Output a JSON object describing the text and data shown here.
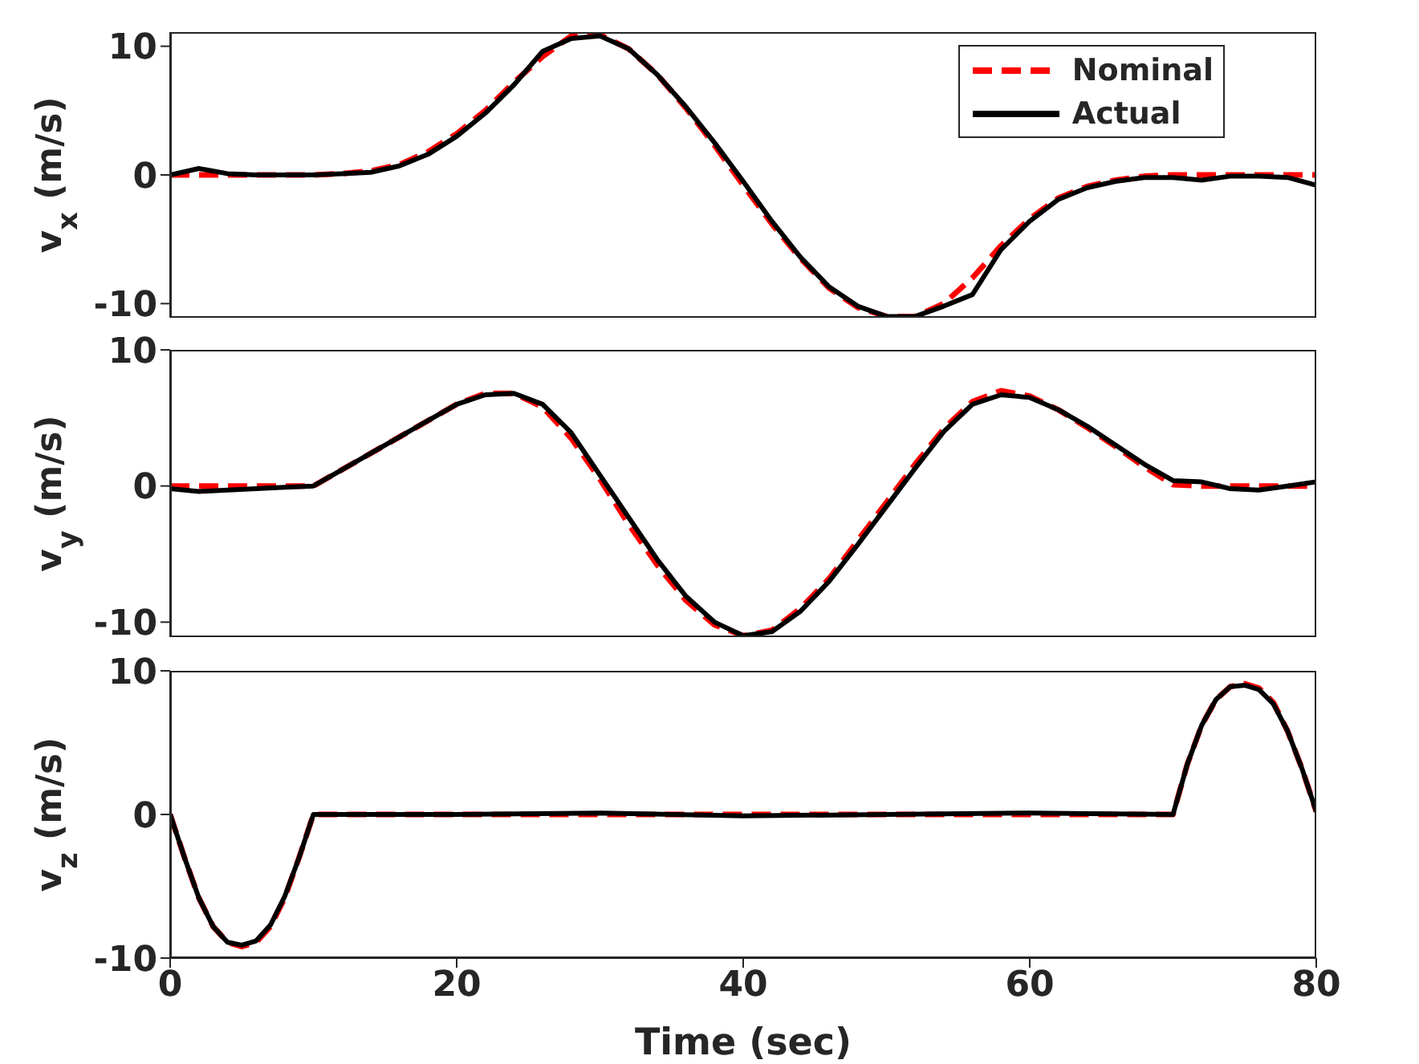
{
  "chart_data": [
    {
      "type": "line",
      "ylabel": "v$_{x}$ (m/s)",
      "xlim": [
        0,
        80
      ],
      "ylim": [
        -11.1,
        11.1
      ],
      "yticks": [
        -10,
        0,
        10
      ],
      "tick_labels": "y",
      "legend": "top right",
      "grid": false,
      "x": [
        0,
        2,
        4,
        6,
        8,
        10,
        12,
        14,
        16,
        18,
        20,
        22,
        24,
        26,
        28,
        30,
        32,
        34,
        36,
        38,
        40,
        42,
        44,
        46,
        48,
        50,
        52,
        54,
        56,
        58,
        60,
        62,
        64,
        66,
        68,
        70,
        72,
        74,
        76,
        78,
        80
      ],
      "series": [
        {
          "name": "Nominal",
          "color": "#ff0000",
          "line_style": "dashed",
          "values": [
            0,
            0,
            0,
            0,
            0,
            0,
            0.1,
            0.3,
            0.8,
            1.8,
            3.2,
            5,
            7.2,
            9.2,
            10.8,
            10.9,
            9.8,
            7.8,
            5.2,
            2.3,
            -0.8,
            -3.8,
            -6.5,
            -8.8,
            -10.3,
            -11,
            -11,
            -10,
            -8,
            -5.5,
            -3.4,
            -1.8,
            -0.9,
            -0.4,
            -0.1,
            0,
            0,
            0,
            0,
            0,
            0
          ]
        },
        {
          "name": "Actual",
          "color": "#000000",
          "line_style": "solid",
          "values": [
            0,
            0.5,
            0.1,
            0,
            0,
            0,
            0.1,
            0.2,
            0.7,
            1.6,
            3,
            4.8,
            7,
            9.6,
            10.6,
            10.8,
            9.8,
            7.8,
            5.3,
            2.5,
            -0.5,
            -3.6,
            -6.4,
            -8.7,
            -10.2,
            -11,
            -11,
            -10.2,
            -9.3,
            -5.8,
            -3.6,
            -1.9,
            -1,
            -0.5,
            -0.2,
            -0.2,
            -0.4,
            -0.1,
            -0.1,
            -0.2,
            -0.8
          ]
        }
      ]
    },
    {
      "type": "line",
      "ylabel": "v$_{y}$ (m/s)",
      "xlim": [
        0,
        80
      ],
      "ylim": [
        -11.1,
        10
      ],
      "yticks": [
        -10,
        0,
        10
      ],
      "tick_labels": "y",
      "grid": false,
      "x": [
        0,
        2,
        4,
        6,
        8,
        10,
        12,
        14,
        16,
        18,
        20,
        22,
        24,
        26,
        28,
        30,
        32,
        34,
        36,
        38,
        40,
        42,
        44,
        46,
        48,
        50,
        52,
        54,
        56,
        58,
        60,
        62,
        64,
        66,
        68,
        70,
        72,
        74,
        76,
        78,
        80
      ],
      "series": [
        {
          "color": "#ff0000",
          "line_style": "dashed",
          "values": [
            0,
            0,
            0,
            0,
            0,
            0,
            1.2,
            2.4,
            3.6,
            4.8,
            6,
            6.8,
            6.8,
            5.8,
            3.5,
            0.5,
            -2.8,
            -5.8,
            -8.4,
            -10.2,
            -11,
            -10.6,
            -9,
            -6.8,
            -4,
            -1.2,
            1.6,
            4.2,
            6.2,
            7,
            6.6,
            5.6,
            4.3,
            2.9,
            1.4,
            0.1,
            0,
            0,
            0,
            0,
            0
          ]
        },
        {
          "color": "#000000",
          "line_style": "solid",
          "values": [
            -0.2,
            -0.4,
            -0.3,
            -0.2,
            -0.1,
            0,
            1.2,
            2.4,
            3.6,
            4.8,
            6,
            6.7,
            6.8,
            6,
            3.9,
            0.8,
            -2.3,
            -5.4,
            -8.1,
            -10,
            -11,
            -10.7,
            -9.2,
            -7,
            -4.3,
            -1.5,
            1.3,
            4,
            6,
            6.7,
            6.5,
            5.6,
            4.4,
            3,
            1.6,
            0.4,
            0.3,
            -0.2,
            -0.3,
            0,
            0.3
          ]
        }
      ]
    },
    {
      "type": "line",
      "ylabel": "v$_{z}$ (m/s)",
      "xlabel": "Time (sec)",
      "xlim": [
        0,
        80
      ],
      "ylim": [
        -10,
        10
      ],
      "yticks": [
        -10,
        0,
        10
      ],
      "xticks": [
        0,
        20,
        40,
        60,
        80
      ],
      "grid": false,
      "x": [
        0,
        1,
        2,
        3,
        4,
        5,
        6,
        7,
        8,
        9,
        10,
        20,
        30,
        40,
        50,
        60,
        70,
        71,
        72,
        73,
        74,
        75,
        76,
        77,
        78,
        79,
        80
      ],
      "series": [
        {
          "color": "#ff0000",
          "line_style": "dashed",
          "values": [
            0,
            -3,
            -5.8,
            -7.8,
            -8.9,
            -9.2,
            -8.9,
            -7.8,
            -5.8,
            -3,
            0,
            0,
            0,
            0,
            0,
            0,
            0,
            3.5,
            6.2,
            8,
            8.9,
            9.1,
            8.8,
            7.8,
            5.8,
            3.2,
            0.2
          ]
        },
        {
          "color": "#000000",
          "line_style": "solid",
          "values": [
            0,
            -3,
            -5.8,
            -7.8,
            -8.9,
            -9.1,
            -8.8,
            -7.7,
            -5.7,
            -3,
            0,
            0,
            0.1,
            -0.1,
            0,
            0.1,
            0,
            3.5,
            6.2,
            8,
            8.9,
            9,
            8.7,
            7.7,
            5.8,
            3.2,
            0.2
          ]
        }
      ]
    }
  ]
}
